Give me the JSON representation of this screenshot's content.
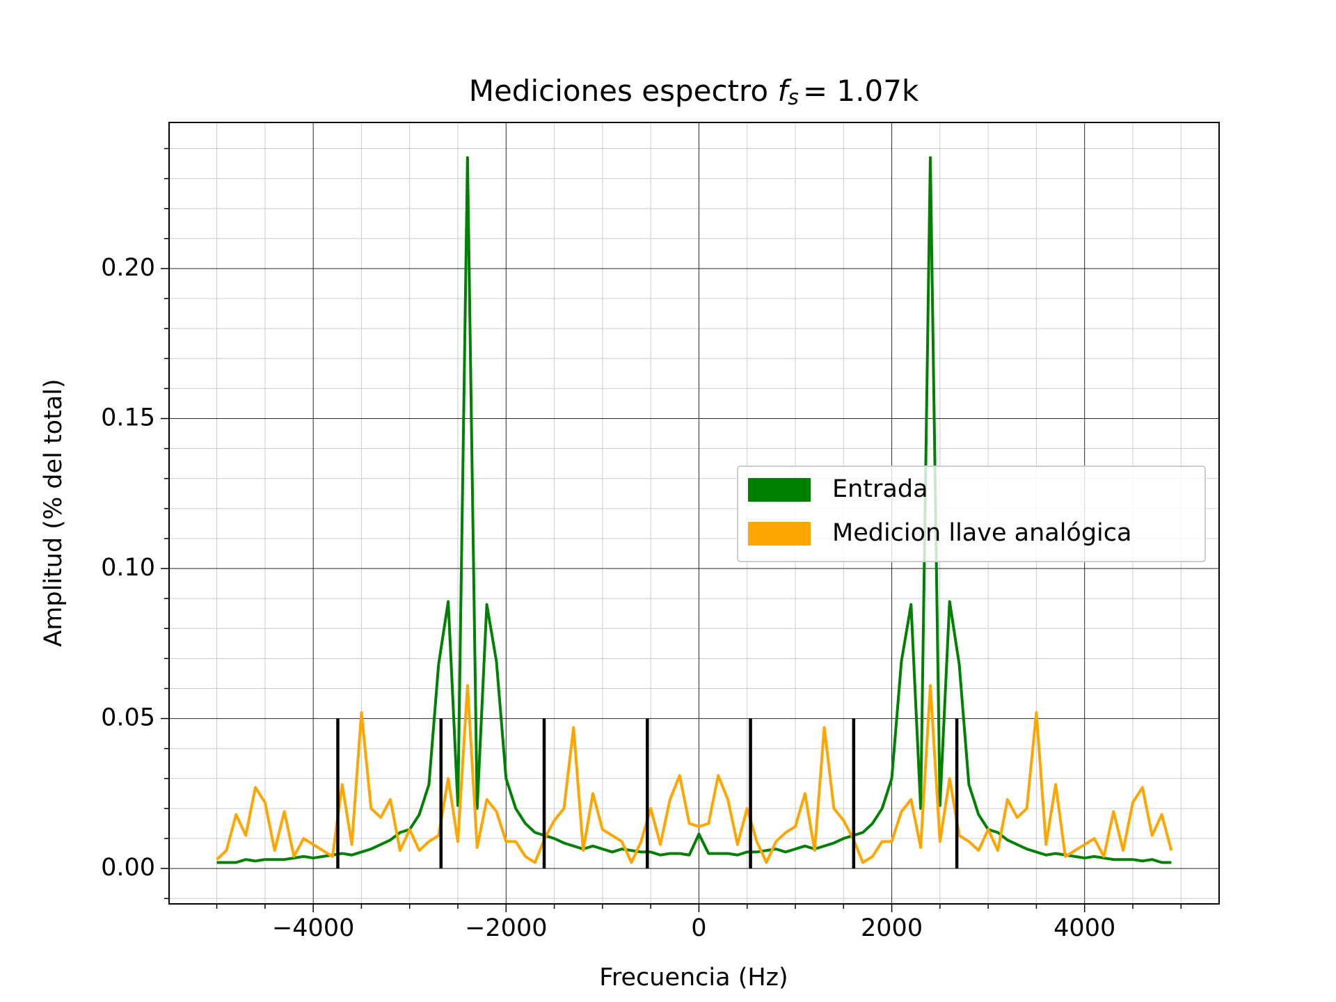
{
  "chart_data": {
    "type": "line",
    "title": "Mediciones espectro",
    "title_math": "f",
    "title_sub": "s",
    "title_eq": "= 1.07k",
    "xlabel": "Frecuencia (Hz)",
    "ylabel": "Amplitud (% del total)",
    "xlim": [
      -5495,
      5395
    ],
    "ylim": [
      -0.0118,
      0.2487
    ],
    "xticks": [
      {
        "value": -4000,
        "label": "−4000"
      },
      {
        "value": -2000,
        "label": "−2000"
      },
      0,
      2000,
      4000
    ],
    "yticks": [
      {
        "value": 0,
        "label": "0.00"
      },
      {
        "value": 0.05,
        "label": "0.05"
      },
      {
        "value": 0.1,
        "label": "0.10"
      },
      {
        "value": 0.15,
        "label": "0.15"
      },
      {
        "value": 0.2,
        "label": "0.20"
      }
    ],
    "xminor": [
      -5000,
      -4500,
      -3500,
      -3000,
      -2500,
      -1500,
      -1000,
      -500,
      500,
      1000,
      1500,
      2500,
      3000,
      3500,
      4500,
      5000
    ],
    "yminor": [
      -0.01,
      0.01,
      0.02,
      0.03,
      0.04,
      0.06,
      0.07,
      0.08,
      0.09,
      0.11,
      0.12,
      0.13,
      0.14,
      0.16,
      0.17,
      0.18,
      0.19,
      0.21,
      0.22,
      0.23,
      0.24
    ],
    "grid": true,
    "legend": "center right",
    "x": [
      -5000,
      -4900,
      -4800,
      -4700,
      -4600,
      -4500,
      -4400,
      -4300,
      -4200,
      -4100,
      -4000,
      -3900,
      -3800,
      -3700,
      -3600,
      -3500,
      -3400,
      -3300,
      -3200,
      -3100,
      -3000,
      -2900,
      -2800,
      -2700,
      -2600,
      -2500,
      -2400,
      -2300,
      -2200,
      -2100,
      -2000,
      -1900,
      -1800,
      -1700,
      -1600,
      -1500,
      -1400,
      -1300,
      -1200,
      -1100,
      -1000,
      -900,
      -800,
      -700,
      -600,
      -500,
      -400,
      -300,
      -200,
      -100,
      0,
      100,
      200,
      300,
      400,
      500,
      600,
      700,
      800,
      900,
      1000,
      1100,
      1200,
      1300,
      1400,
      1500,
      1600,
      1700,
      1800,
      1900,
      2000,
      2100,
      2200,
      2300,
      2400,
      2500,
      2600,
      2700,
      2800,
      2900,
      3000,
      3100,
      3200,
      3300,
      3400,
      3500,
      3600,
      3700,
      3800,
      3900,
      4000,
      4100,
      4200,
      4300,
      4400,
      4500,
      4600,
      4700,
      4800,
      4900
    ],
    "series": [
      {
        "name": "Entrada",
        "color": "#008000",
        "values": [
          0.002,
          0.002,
          0.002,
          0.003,
          0.0025,
          0.003,
          0.003,
          0.003,
          0.0035,
          0.004,
          0.0035,
          0.004,
          0.0045,
          0.005,
          0.0045,
          0.0055,
          0.0065,
          0.008,
          0.0095,
          0.012,
          0.013,
          0.018,
          0.028,
          0.068,
          0.089,
          0.021,
          0.237,
          0.02,
          0.088,
          0.069,
          0.03,
          0.02,
          0.015,
          0.012,
          0.011,
          0.01,
          0.0085,
          0.0075,
          0.0065,
          0.0075,
          0.0065,
          0.0055,
          0.0065,
          0.006,
          0.0055,
          0.0055,
          0.0045,
          0.005,
          0.005,
          0.0045,
          0.0115,
          0.005,
          0.005,
          0.005,
          0.0045,
          0.0055,
          0.0055,
          0.006,
          0.0065,
          0.0055,
          0.0065,
          0.0075,
          0.0065,
          0.0075,
          0.0085,
          0.01,
          0.011,
          0.012,
          0.015,
          0.02,
          0.03,
          0.069,
          0.088,
          0.02,
          0.237,
          0.021,
          0.089,
          0.068,
          0.028,
          0.018,
          0.013,
          0.012,
          0.0095,
          0.008,
          0.0065,
          0.0055,
          0.0045,
          0.005,
          0.0045,
          0.004,
          0.0035,
          0.004,
          0.0035,
          0.003,
          0.003,
          0.003,
          0.0025,
          0.003,
          0.002,
          0.002
        ]
      },
      {
        "name": "Medicion llave analógica",
        "color": "#ffa500",
        "values": [
          0.003,
          0.006,
          0.018,
          0.011,
          0.027,
          0.022,
          0.006,
          0.019,
          0.004,
          0.01,
          0.008,
          0.006,
          0.004,
          0.028,
          0.008,
          0.052,
          0.02,
          0.017,
          0.023,
          0.006,
          0.013,
          0.006,
          0.009,
          0.011,
          0.03,
          0.009,
          0.061,
          0.007,
          0.023,
          0.019,
          0.009,
          0.009,
          0.004,
          0.002,
          0.01,
          0.016,
          0.02,
          0.047,
          0.006,
          0.025,
          0.013,
          0.011,
          0.009,
          0.002,
          0.009,
          0.02,
          0.008,
          0.023,
          0.031,
          0.015,
          0.014,
          0.015,
          0.031,
          0.023,
          0.008,
          0.02,
          0.009,
          0.002,
          0.009,
          0.012,
          0.014,
          0.025,
          0.006,
          0.047,
          0.02,
          0.016,
          0.01,
          0.002,
          0.004,
          0.009,
          0.009,
          0.019,
          0.023,
          0.007,
          0.061,
          0.009,
          0.03,
          0.011,
          0.009,
          0.006,
          0.013,
          0.006,
          0.023,
          0.017,
          0.02,
          0.052,
          0.008,
          0.028,
          0.004,
          0.006,
          0.008,
          0.01,
          0.004,
          0.019,
          0.006,
          0.022,
          0.027,
          0.011,
          0.018,
          0.006
        ]
      }
    ],
    "vlines": {
      "x": [
        -3745,
        -2675,
        -1605,
        -535,
        535,
        1605,
        2675
      ],
      "ymin": 0,
      "ymax": 0.05,
      "color": "#000000"
    }
  }
}
